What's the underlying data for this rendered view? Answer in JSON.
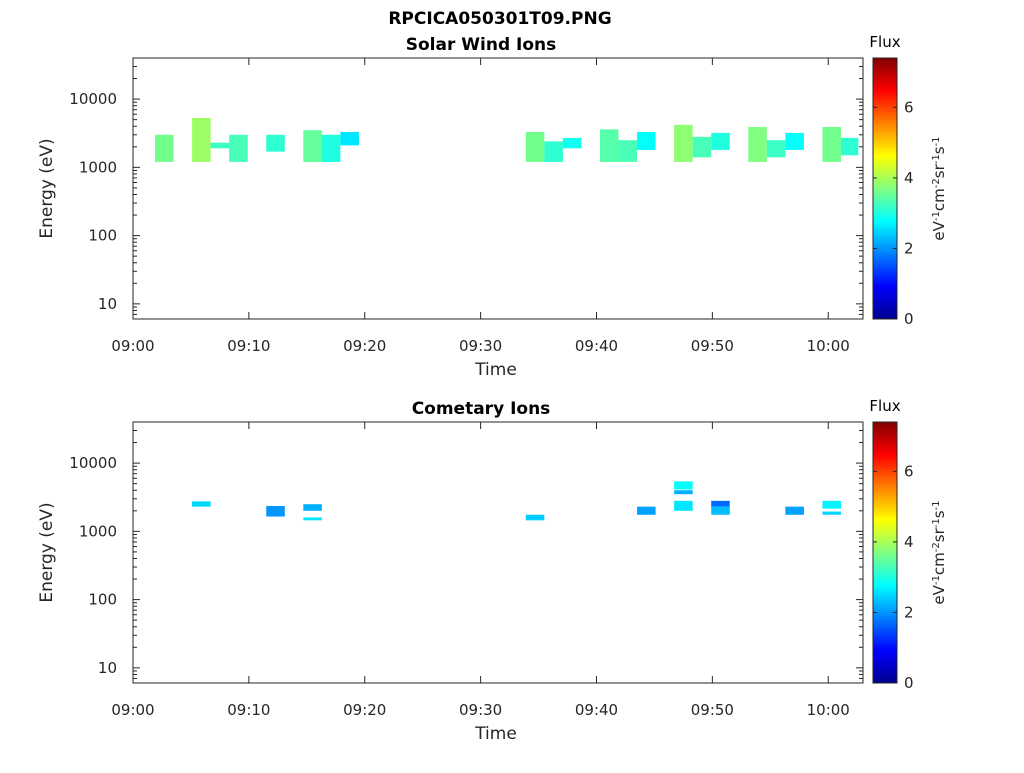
{
  "figure_title": "RPCICA050301T09.PNG",
  "colormap": [
    "#00008f",
    "#0000ff",
    "#0080ff",
    "#00ffff",
    "#80ff80",
    "#ffff00",
    "#ff8000",
    "#ff0000",
    "#800000"
  ],
  "chart_data": [
    {
      "type": "heatmap",
      "title": "Solar Wind Ions",
      "xlabel": "Time",
      "ylabel": "Energy (eV)",
      "x_unit": "minutes after 09:00",
      "xlim": [
        0,
        63
      ],
      "xticks": [
        0,
        10,
        20,
        30,
        40,
        50,
        60
      ],
      "xtick_labels": [
        "09:00",
        "09:10",
        "09:20",
        "09:30",
        "09:40",
        "09:50",
        "10:00"
      ],
      "yscale": "log",
      "ylim": [
        6,
        40000
      ],
      "yticks": [
        10,
        100,
        1000,
        10000
      ],
      "ytick_labels": [
        "10",
        "100",
        "1000",
        "10000"
      ],
      "colorbar": {
        "title": "Flux",
        "label": "eV-1cm-2sr-1s-1",
        "range": [
          0,
          7.4
        ],
        "ticks": [
          0,
          2,
          4,
          6
        ],
        "tick_labels": [
          "0",
          "2",
          "4",
          "6"
        ]
      },
      "cells": [
        {
          "t0": 1.9,
          "t1": 3.5,
          "e0": 1200,
          "e1": 3000,
          "flux": 3.6
        },
        {
          "t0": 5.1,
          "t1": 6.7,
          "e0": 1200,
          "e1": 5300,
          "flux": 3.9
        },
        {
          "t0": 6.7,
          "t1": 8.3,
          "e0": 1900,
          "e1": 2300,
          "flux": 3.2
        },
        {
          "t0": 8.3,
          "t1": 9.9,
          "e0": 1200,
          "e1": 3000,
          "flux": 3.3
        },
        {
          "t0": 11.5,
          "t1": 13.1,
          "e0": 1700,
          "e1": 3000,
          "flux": 3.1
        },
        {
          "t0": 14.7,
          "t1": 16.3,
          "e0": 1200,
          "e1": 3500,
          "flux": 3.5
        },
        {
          "t0": 16.3,
          "t1": 17.9,
          "e0": 1200,
          "e1": 3000,
          "flux": 3.0
        },
        {
          "t0": 17.9,
          "t1": 19.5,
          "e0": 2100,
          "e1": 3300,
          "flux": 2.6
        },
        {
          "t0": 33.9,
          "t1": 35.5,
          "e0": 1200,
          "e1": 3300,
          "flux": 3.6
        },
        {
          "t0": 35.5,
          "t1": 37.1,
          "e0": 1200,
          "e1": 2400,
          "flux": 3.1
        },
        {
          "t0": 37.1,
          "t1": 38.7,
          "e0": 1900,
          "e1": 2700,
          "flux": 2.9
        },
        {
          "t0": 40.3,
          "t1": 41.9,
          "e0": 1200,
          "e1": 3600,
          "flux": 3.4
        },
        {
          "t0": 41.9,
          "t1": 43.5,
          "e0": 1200,
          "e1": 2500,
          "flux": 3.3
        },
        {
          "t0": 43.5,
          "t1": 45.1,
          "e0": 1800,
          "e1": 3300,
          "flux": 2.8
        },
        {
          "t0": 46.7,
          "t1": 48.3,
          "e0": 1200,
          "e1": 4200,
          "flux": 3.8
        },
        {
          "t0": 48.3,
          "t1": 49.9,
          "e0": 1400,
          "e1": 2800,
          "flux": 3.3
        },
        {
          "t0": 49.9,
          "t1": 51.5,
          "e0": 1800,
          "e1": 3200,
          "flux": 3.0
        },
        {
          "t0": 53.1,
          "t1": 54.7,
          "e0": 1200,
          "e1": 3900,
          "flux": 3.7
        },
        {
          "t0": 54.7,
          "t1": 56.3,
          "e0": 1400,
          "e1": 2500,
          "flux": 3.2
        },
        {
          "t0": 56.3,
          "t1": 57.9,
          "e0": 1800,
          "e1": 3200,
          "flux": 2.8
        },
        {
          "t0": 59.5,
          "t1": 61.1,
          "e0": 1200,
          "e1": 3900,
          "flux": 3.6
        },
        {
          "t0": 61.1,
          "t1": 62.6,
          "e0": 1500,
          "e1": 2700,
          "flux": 3.1
        }
      ]
    },
    {
      "type": "heatmap",
      "title": "Cometary Ions",
      "xlabel": "Time",
      "ylabel": "Energy (eV)",
      "x_unit": "minutes after 09:00",
      "xlim": [
        0,
        63
      ],
      "xticks": [
        0,
        10,
        20,
        30,
        40,
        50,
        60
      ],
      "xtick_labels": [
        "09:00",
        "09:10",
        "09:20",
        "09:30",
        "09:40",
        "09:50",
        "10:00"
      ],
      "yscale": "log",
      "ylim": [
        6,
        40000
      ],
      "yticks": [
        10,
        100,
        1000,
        10000
      ],
      "ytick_labels": [
        "10",
        "100",
        "1000",
        "10000"
      ],
      "colorbar": {
        "title": "Flux",
        "label": "eV-1cm-2sr-1s-1",
        "range": [
          0,
          7.4
        ],
        "ticks": [
          0,
          2,
          4,
          6
        ],
        "tick_labels": [
          "0",
          "2",
          "4",
          "6"
        ]
      },
      "cells": [
        {
          "t0": 5.1,
          "t1": 6.7,
          "e0": 2300,
          "e1": 2750,
          "flux": 2.5
        },
        {
          "t0": 11.5,
          "t1": 13.1,
          "e0": 1650,
          "e1": 2350,
          "flux": 2.0
        },
        {
          "t0": 14.7,
          "t1": 16.3,
          "e0": 2000,
          "e1": 2500,
          "flux": 2.2
        },
        {
          "t0": 14.7,
          "t1": 16.3,
          "e0": 1450,
          "e1": 1600,
          "flux": 2.6
        },
        {
          "t0": 33.9,
          "t1": 35.5,
          "e0": 1450,
          "e1": 1750,
          "flux": 2.4
        },
        {
          "t0": 43.5,
          "t1": 45.1,
          "e0": 1750,
          "e1": 2300,
          "flux": 2.1
        },
        {
          "t0": 46.7,
          "t1": 48.3,
          "e0": 4100,
          "e1": 5400,
          "flux": 2.8
        },
        {
          "t0": 46.7,
          "t1": 48.3,
          "e0": 3500,
          "e1": 4000,
          "flux": 2.2
        },
        {
          "t0": 46.7,
          "t1": 48.3,
          "e0": 2000,
          "e1": 2800,
          "flux": 2.6
        },
        {
          "t0": 49.9,
          "t1": 51.5,
          "e0": 2300,
          "e1": 2800,
          "flux": 1.7
        },
        {
          "t0": 49.9,
          "t1": 51.5,
          "e0": 1750,
          "e1": 2300,
          "flux": 2.3
        },
        {
          "t0": 56.3,
          "t1": 57.9,
          "e0": 1750,
          "e1": 2300,
          "flux": 2.1
        },
        {
          "t0": 59.5,
          "t1": 61.1,
          "e0": 2150,
          "e1": 2800,
          "flux": 2.7
        },
        {
          "t0": 59.5,
          "t1": 61.1,
          "e0": 1750,
          "e1": 1950,
          "flux": 2.5
        }
      ]
    }
  ]
}
